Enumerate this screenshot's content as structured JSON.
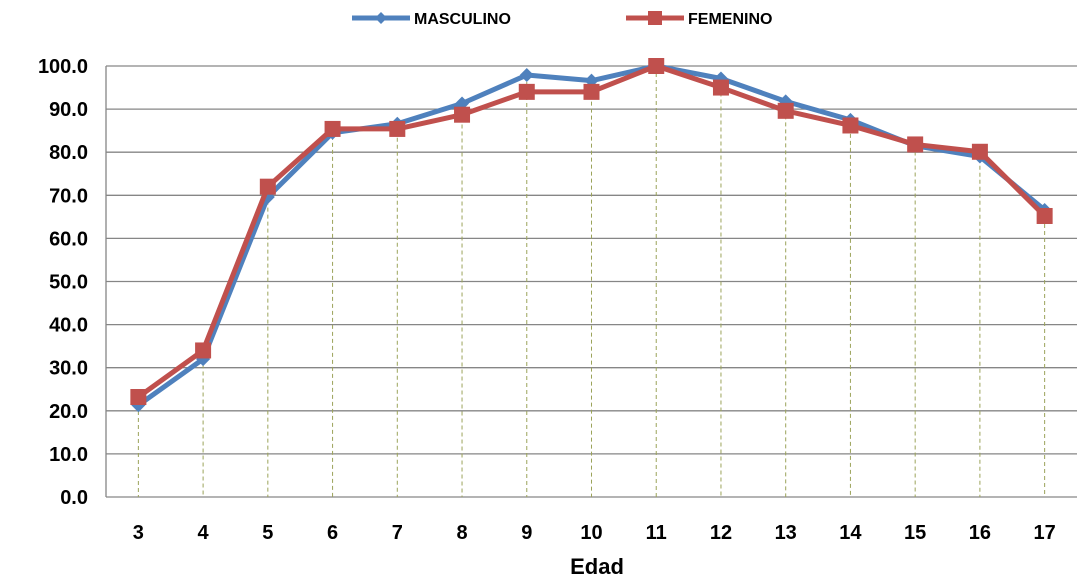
{
  "chart_data": {
    "type": "line",
    "xlabel": "Edad",
    "ylabel": "",
    "ylim": [
      0,
      100
    ],
    "yticks": [
      "0.0",
      "10.0",
      "20.0",
      "30.0",
      "40.0",
      "50.0",
      "60.0",
      "70.0",
      "80.0",
      "90.0",
      "100.0"
    ],
    "categories": [
      "3",
      "4",
      "5",
      "6",
      "7",
      "8",
      "9",
      "10",
      "11",
      "12",
      "13",
      "14",
      "15",
      "16",
      "17"
    ],
    "grid": "horizontal gridlines; vertical dashed drop lines",
    "legend_position": "top",
    "series": [
      {
        "name": "MASCULINO",
        "color": "#4F81BD",
        "marker": "diamond",
        "values": [
          21.3,
          32.0,
          69.6,
          84.5,
          86.6,
          91.3,
          97.9,
          96.6,
          100.0,
          97.1,
          91.8,
          87.5,
          81.5,
          79.0,
          66.6
        ]
      },
      {
        "name": "FEMENINO",
        "color": "#C0504D",
        "marker": "square",
        "values": [
          23.2,
          34.0,
          72.0,
          85.4,
          85.4,
          88.7,
          94.0,
          94.0,
          100.0,
          95.0,
          89.6,
          86.2,
          81.8,
          80.1,
          65.2
        ]
      }
    ]
  }
}
